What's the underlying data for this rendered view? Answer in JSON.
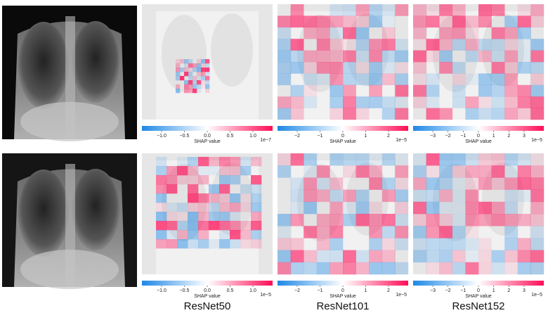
{
  "columns": [
    {
      "label": "ResNet50"
    },
    {
      "label": "ResNet101"
    },
    {
      "label": "ResNet152"
    }
  ],
  "rows": [
    {
      "colorbars": [
        {
          "ticks": [
            "−1.0",
            "−0.5",
            "0.0",
            "0.5",
            "1.0"
          ],
          "scale": "1e−7",
          "label": "SHAP value"
        },
        {
          "ticks": [
            "−2",
            "−1",
            "0",
            "1",
            "2"
          ],
          "scale": "1e−5",
          "label": "SHAP value"
        },
        {
          "ticks": [
            "−3",
            "−2",
            "−1",
            "0",
            "1",
            "2",
            "3"
          ],
          "scale": "1e−5",
          "label": "SHAP value"
        }
      ]
    },
    {
      "colorbars": [
        {
          "ticks": [
            "−1.0",
            "−0.5",
            "0.0",
            "0.5",
            "1.0"
          ],
          "scale": "1e−5",
          "label": "SHAP value"
        },
        {
          "ticks": [
            "−2",
            "−1",
            "0",
            "1",
            "2"
          ],
          "scale": "1e−5",
          "label": "SHAP value"
        },
        {
          "ticks": [
            "−3",
            "−2",
            "−1",
            "0",
            "1",
            "2",
            "3"
          ],
          "scale": "1e−5",
          "label": "SHAP value"
        }
      ]
    }
  ]
}
